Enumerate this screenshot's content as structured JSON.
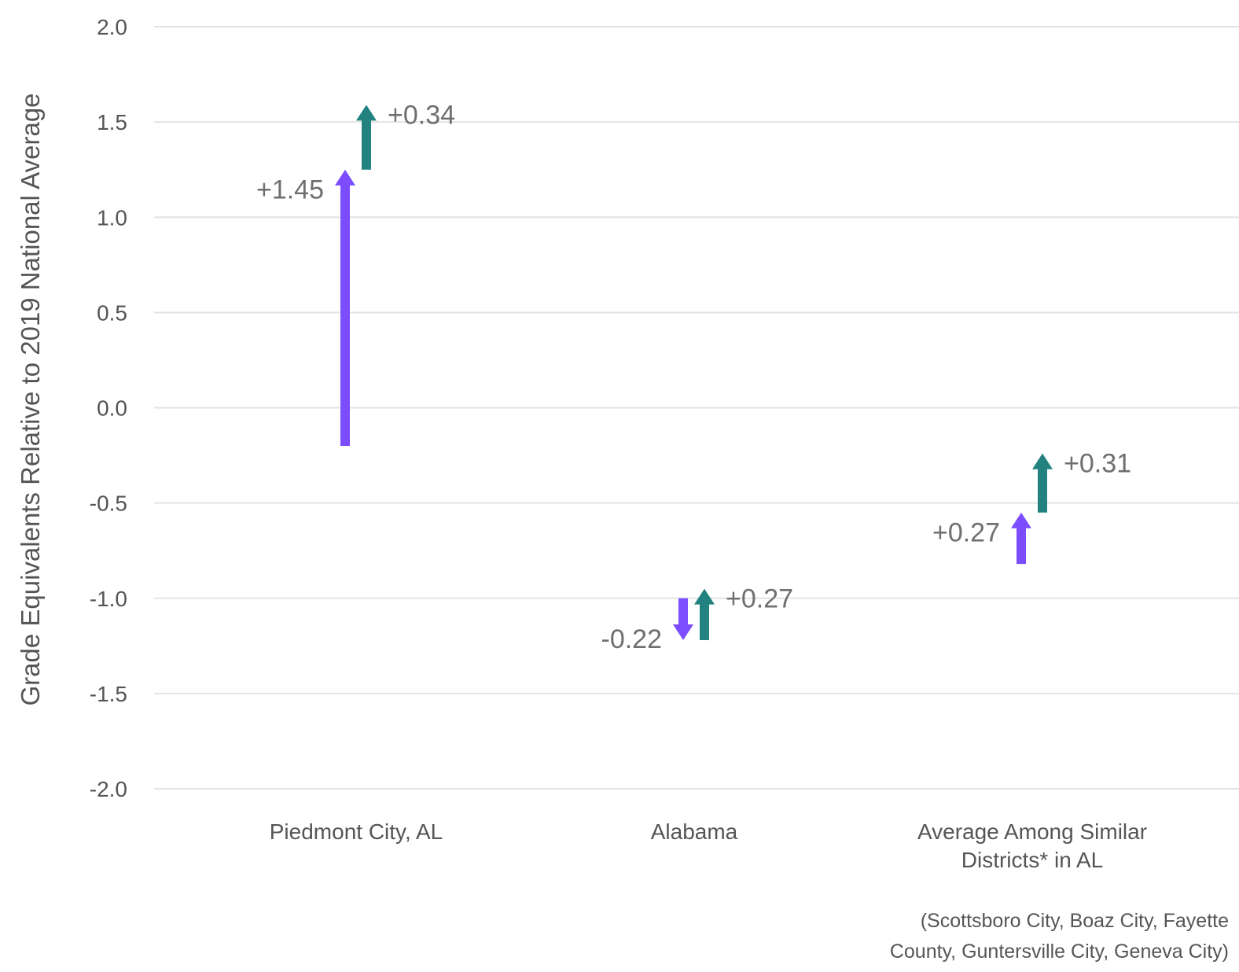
{
  "chart_data": {
    "type": "arrow",
    "title": "",
    "xlabel": "",
    "ylabel": "Grade Equivalents Relative to 2019 National Average",
    "ylim": [
      -2.0,
      2.0
    ],
    "yticks": [
      "2.0",
      "1.5",
      "1.0",
      "0.5",
      "0.0",
      "-0.5",
      "-1.0",
      "-1.5",
      "-2.0"
    ],
    "grid": true,
    "legend": "none",
    "categories": [
      {
        "label_lines": [
          "Piedmont City, AL"
        ]
      },
      {
        "label_lines": [
          "Alabama"
        ]
      },
      {
        "label_lines": [
          "Average Among Similar",
          "Districts* in AL"
        ]
      }
    ],
    "series": [
      {
        "color": "#7b4dff",
        "arrows": [
          {
            "from": -0.2,
            "to": 1.25,
            "label": "+1.45"
          },
          {
            "from": -1.0,
            "to": -1.22,
            "label": "-0.22"
          },
          {
            "from": -0.82,
            "to": -0.55,
            "label": "+0.27"
          }
        ]
      },
      {
        "color": "#21827f",
        "arrows": [
          {
            "from": 1.25,
            "to": 1.59,
            "label": "+0.34"
          },
          {
            "from": -1.22,
            "to": -0.95,
            "label": "+0.27"
          },
          {
            "from": -0.55,
            "to": -0.24,
            "label": "+0.31"
          }
        ]
      }
    ],
    "footnote_lines": [
      "(Scottsboro City, Boaz City, Fayette",
      "County, Guntersville City, Geneva City)"
    ],
    "colors": {
      "grid": "#e3e3e3",
      "tick_text": "#555555",
      "value_text": "#6f6f6f",
      "axis_title": "#555555"
    }
  }
}
